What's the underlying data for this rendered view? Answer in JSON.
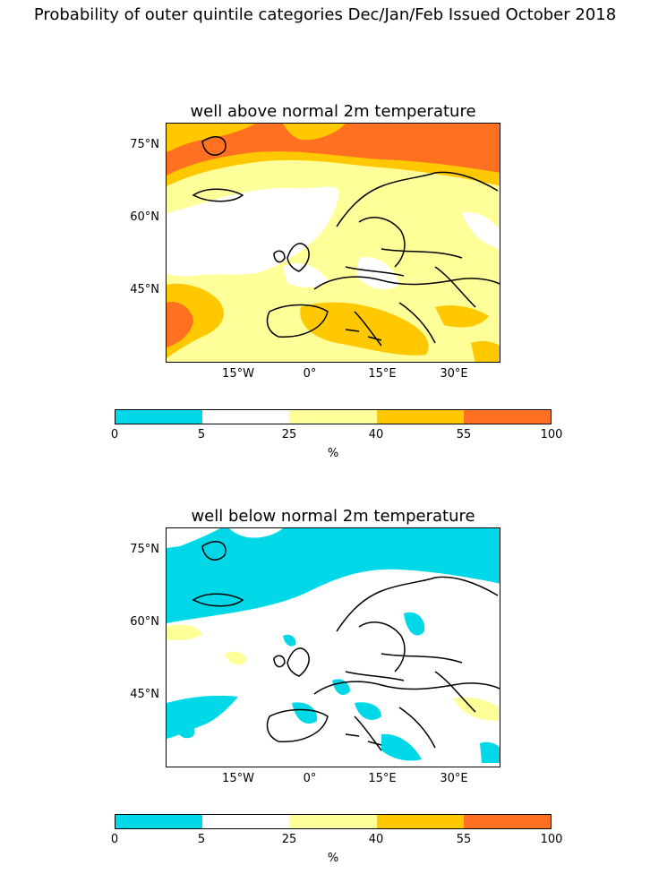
{
  "figure_title": "Probability of outer quintile categories Dec/Jan/Feb Issued October 2018",
  "panels": [
    {
      "title": "well above normal 2m temperature"
    },
    {
      "title": "well below normal 2m temperature"
    }
  ],
  "lat_labels": [
    "75°N",
    "60°N",
    "45°N"
  ],
  "lon_labels": [
    "15°W",
    "0°",
    "15°E",
    "30°E"
  ],
  "colorbar": {
    "ticks": [
      "0",
      "5",
      "25",
      "40",
      "55",
      "100"
    ],
    "unit": "%",
    "colors": [
      "#00d8e8",
      "#ffffff",
      "#ffff99",
      "#ffc800",
      "#ff7020"
    ]
  },
  "chart_data": {
    "type": "map",
    "region": "Europe and North Atlantic",
    "projection": "lat-lon",
    "levels_percent": [
      0,
      5,
      25,
      40,
      55,
      100
    ],
    "level_colors": [
      "#00d8e8",
      "#ffffff",
      "#ffff99",
      "#ffc800",
      "#ff7020"
    ]
  }
}
